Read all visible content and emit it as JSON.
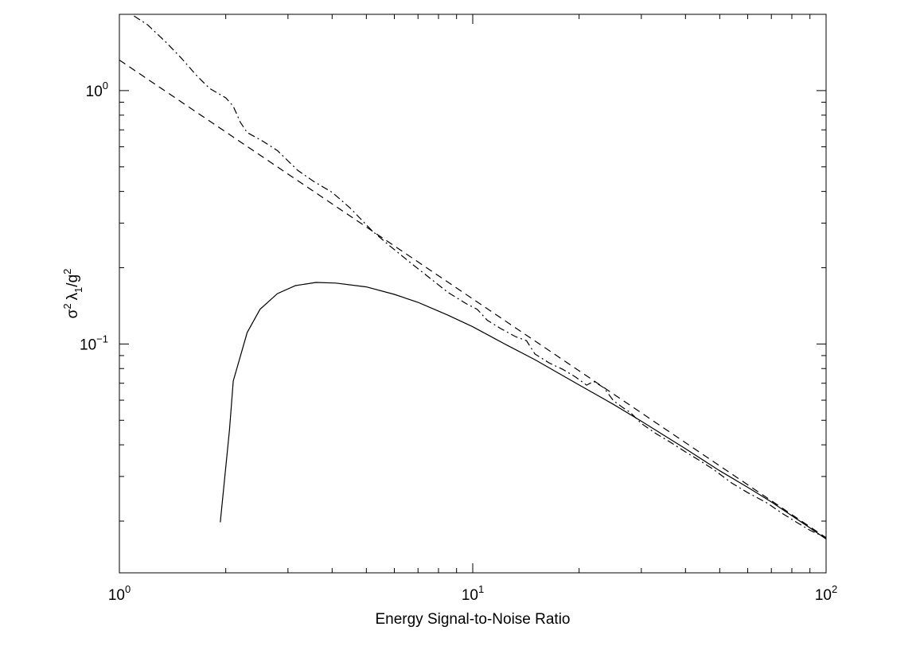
{
  "chart_data": {
    "type": "line",
    "title": "",
    "xlabel": "Energy Signal-to-Noise Ratio",
    "ylabel": {
      "sigma": "σ",
      "sigma_sup": "2",
      "lambda": "λ",
      "lambda_sub": "1",
      "slash_g": "/g",
      "g_sup": "2"
    },
    "xscale": "log",
    "yscale": "log",
    "xlim": [
      1,
      100
    ],
    "ylim": [
      0.0125,
      2.0
    ],
    "grid": false,
    "legend": "none",
    "x_ticks": [
      {
        "value": 1,
        "base": "10",
        "exp": "0"
      },
      {
        "value": 10,
        "base": "10",
        "exp": "1"
      },
      {
        "value": 100,
        "base": "10",
        "exp": "2"
      }
    ],
    "y_ticks": [
      {
        "value": 0.1,
        "base": "10",
        "exp": "−1"
      },
      {
        "value": 1,
        "base": "10",
        "exp": "0"
      }
    ],
    "series": [
      {
        "style": "solid",
        "color": "#000000",
        "points": [
          [
            1.93,
            0.0198
          ],
          [
            2.05,
            0.046
          ],
          [
            2.1,
            0.0715
          ],
          [
            2.3,
            0.111
          ],
          [
            2.5,
            0.137
          ],
          [
            2.8,
            0.158
          ],
          [
            3.15,
            0.17
          ],
          [
            3.6,
            0.175
          ],
          [
            4.1,
            0.174
          ],
          [
            5.0,
            0.168
          ],
          [
            6.0,
            0.157
          ],
          [
            7.0,
            0.146
          ],
          [
            8.5,
            0.13
          ],
          [
            10,
            0.117
          ],
          [
            12.5,
            0.099
          ],
          [
            15,
            0.0867
          ],
          [
            20,
            0.0689
          ],
          [
            25,
            0.0578
          ],
          [
            30,
            0.0496
          ],
          [
            40,
            0.0386
          ],
          [
            50,
            0.0316
          ],
          [
            60,
            0.0272
          ],
          [
            70,
            0.0238
          ],
          [
            80,
            0.021
          ],
          [
            90,
            0.0188
          ],
          [
            100,
            0.017
          ]
        ]
      },
      {
        "style": "dashed",
        "color": "#000000",
        "points": [
          [
            1,
            1.32
          ],
          [
            100,
            0.0172
          ]
        ]
      },
      {
        "style": "dashdot",
        "color": "#000000",
        "points": [
          [
            1.1,
            1.97
          ],
          [
            1.2,
            1.82
          ],
          [
            1.35,
            1.56
          ],
          [
            1.5,
            1.34
          ],
          [
            1.65,
            1.15
          ],
          [
            1.8,
            1.02
          ],
          [
            2.0,
            0.936
          ],
          [
            2.1,
            0.868
          ],
          [
            2.2,
            0.75
          ],
          [
            2.3,
            0.683
          ],
          [
            2.55,
            0.631
          ],
          [
            2.8,
            0.58
          ],
          [
            3.2,
            0.484
          ],
          [
            3.55,
            0.438
          ],
          [
            4.0,
            0.397
          ],
          [
            4.5,
            0.344
          ],
          [
            5.2,
            0.279
          ],
          [
            5.8,
            0.245
          ],
          [
            6.7,
            0.208
          ],
          [
            7.6,
            0.181
          ],
          [
            8.5,
            0.16
          ],
          [
            9.6,
            0.144
          ],
          [
            10.3,
            0.137
          ],
          [
            11.0,
            0.124
          ],
          [
            12.0,
            0.115
          ],
          [
            13.2,
            0.107
          ],
          [
            14.2,
            0.103
          ],
          [
            15.0,
            0.0913
          ],
          [
            16.5,
            0.084
          ],
          [
            18.0,
            0.0794
          ],
          [
            19.5,
            0.0742
          ],
          [
            21.0,
            0.0688
          ],
          [
            22.0,
            0.0712
          ],
          [
            23.5,
            0.0672
          ],
          [
            25.0,
            0.0598
          ],
          [
            26.5,
            0.0563
          ],
          [
            28.0,
            0.0535
          ],
          [
            30.0,
            0.0486
          ],
          [
            33.0,
            0.0443
          ],
          [
            36.0,
            0.0412
          ],
          [
            40.0,
            0.0375
          ],
          [
            44.0,
            0.0346
          ],
          [
            48.0,
            0.032
          ],
          [
            54.0,
            0.0283
          ],
          [
            60.0,
            0.0259
          ],
          [
            68.0,
            0.0236
          ],
          [
            75.0,
            0.0215
          ],
          [
            82.0,
            0.0199
          ],
          [
            90.0,
            0.0184
          ],
          [
            100,
            0.0172
          ]
        ]
      }
    ]
  }
}
